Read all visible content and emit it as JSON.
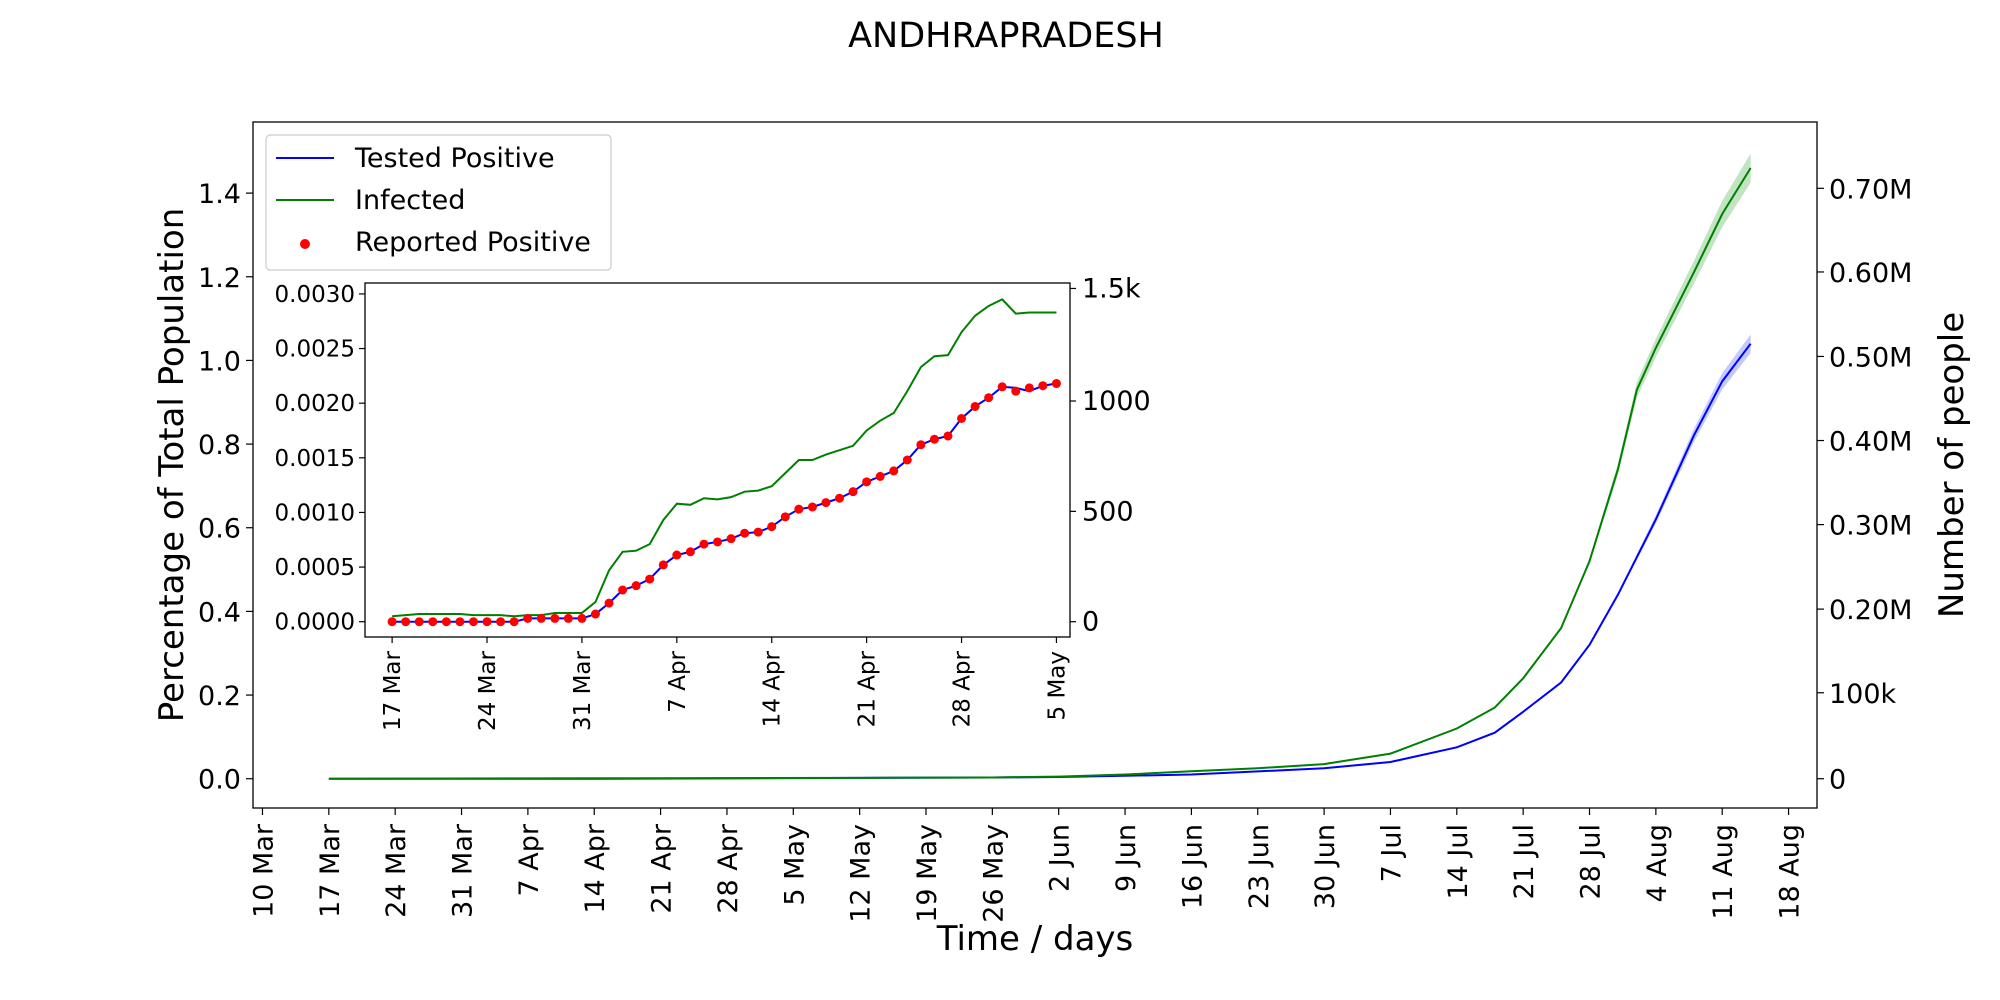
{
  "title": "ANDHRAPRADESH",
  "colors": {
    "tested": "#0000ff",
    "infected": "#008000",
    "reported": "#ff0000",
    "band_tested": "#aab4ff",
    "band_infected": "#a8d8a8"
  },
  "legend": {
    "placement": "top-left",
    "items": [
      {
        "key": "tested",
        "label": "Tested Positive",
        "kind": "line"
      },
      {
        "key": "infected",
        "label": "Infected",
        "kind": "line"
      },
      {
        "key": "reported",
        "label": "Reported Positive",
        "kind": "dot"
      }
    ]
  },
  "chart_data": [
    {
      "id": "main",
      "type": "line",
      "title": "ANDHRAPRADESH",
      "xlabel": "Time / days",
      "ylabel": "Percentage of Total Population",
      "y2label": "Number of people",
      "x_ticks": [
        "10 Mar",
        "17 Mar",
        "24 Mar",
        "31 Mar",
        "7 Apr",
        "14 Apr",
        "21 Apr",
        "28 Apr",
        "5 May",
        "12 May",
        "19 May",
        "26 May",
        "2 Jun",
        "9 Jun",
        "16 Jun",
        "23 Jun",
        "30 Jun",
        "7 Jul",
        "14 Jul",
        "21 Jul",
        "28 Jul",
        "4 Aug",
        "11 Aug",
        "18 Aug"
      ],
      "xlim": [
        "2020-03-09",
        "2020-08-21"
      ],
      "ylim": [
        -0.07,
        1.57
      ],
      "y_ticks": [
        "0.0",
        "0.2",
        "0.4",
        "0.6",
        "0.8",
        "1.0",
        "1.2",
        "1.4"
      ],
      "y2_ticks": [
        {
          "label": "0",
          "value": 0
        },
        {
          "label": "100k",
          "value": 0.2055
        },
        {
          "label": "0.20M",
          "value": 0.4055
        },
        {
          "label": "0.30M",
          "value": 0.6075
        },
        {
          "label": "0.40M",
          "value": 0.8085
        },
        {
          "label": "0.50M",
          "value": 1.0095
        },
        {
          "label": "0.60M",
          "value": 1.2115
        },
        {
          "label": "0.70M",
          "value": 1.4115
        }
      ],
      "grid": false,
      "series": [
        {
          "name": "Tested Positive",
          "key": "tested",
          "x": [
            "2020-03-17",
            "2020-04-14",
            "2020-05-12",
            "2020-05-26",
            "2020-06-02",
            "2020-06-16",
            "2020-06-30",
            "2020-07-07",
            "2020-07-14",
            "2020-07-18",
            "2020-07-21",
            "2020-07-25",
            "2020-07-28",
            "2020-07-31",
            "2020-08-04",
            "2020-08-08",
            "2020-08-11",
            "2020-08-14"
          ],
          "y": [
            0.0,
            0.0,
            0.002,
            0.003,
            0.004,
            0.01,
            0.025,
            0.04,
            0.075,
            0.11,
            0.16,
            0.23,
            0.32,
            0.44,
            0.62,
            0.82,
            0.95,
            1.04
          ]
        },
        {
          "name": "Infected",
          "key": "infected",
          "x": [
            "2020-03-17",
            "2020-04-14",
            "2020-05-12",
            "2020-05-26",
            "2020-06-02",
            "2020-06-09",
            "2020-06-16",
            "2020-06-23",
            "2020-06-30",
            "2020-07-07",
            "2020-07-14",
            "2020-07-18",
            "2020-07-21",
            "2020-07-25",
            "2020-07-28",
            "2020-07-31",
            "2020-08-02",
            "2020-08-04",
            "2020-08-08",
            "2020-08-11",
            "2020-08-14"
          ],
          "y": [
            0.0,
            0.001,
            0.002,
            0.003,
            0.005,
            0.01,
            0.018,
            0.025,
            0.035,
            0.06,
            0.12,
            0.17,
            0.24,
            0.36,
            0.52,
            0.74,
            0.93,
            1.03,
            1.21,
            1.35,
            1.46
          ]
        }
      ]
    },
    {
      "id": "inset",
      "type": "line",
      "x_ticks": [
        "17 Mar",
        "24 Mar",
        "31 Mar",
        "7 Apr",
        "14 Apr",
        "21 Apr",
        "28 Apr",
        "5 May"
      ],
      "xlim": [
        "2020-03-15",
        "2020-05-06"
      ],
      "ylim": [
        -0.00014,
        0.0031
      ],
      "y_ticks": [
        "0.0000",
        "0.0005",
        "0.0010",
        "0.0015",
        "0.0020",
        "0.0025",
        "0.0030"
      ],
      "y2_ticks": [
        {
          "label": "0",
          "value": 0.0
        },
        {
          "label": "500",
          "value": 0.00101
        },
        {
          "label": "1000",
          "value": 0.00202
        },
        {
          "label": "1.5k",
          "value": 0.00305
        }
      ],
      "series": [
        {
          "name": "Tested Positive",
          "key": "tested",
          "start": "2020-03-17",
          "y": [
            0.0,
            0.0,
            0.0,
            0.0,
            0.0,
            0.0,
            0.0,
            0.0,
            0.0,
            0.0,
            3e-05,
            3e-05,
            3e-05,
            3e-05,
            3e-05,
            7e-05,
            0.00017,
            0.00029,
            0.00033,
            0.00039,
            0.00052,
            0.00061,
            0.00064,
            0.00071,
            0.00073,
            0.00076,
            0.00081,
            0.00082,
            0.00087,
            0.00096,
            0.00103,
            0.00105,
            0.00109,
            0.00113,
            0.00119,
            0.00128,
            0.00133,
            0.00138,
            0.00148,
            0.00162,
            0.00167,
            0.0017,
            0.00186,
            0.00197,
            0.00205,
            0.00215,
            0.00214,
            0.00211,
            0.00216,
            0.00218
          ]
        },
        {
          "name": "Infected",
          "key": "infected",
          "start": "2020-03-17",
          "y": [
            5e-05,
            6e-05,
            7e-05,
            7e-05,
            7e-05,
            7e-05,
            6e-05,
            6e-05,
            6e-05,
            5e-05,
            6e-05,
            6e-05,
            8e-05,
            8e-05,
            8e-05,
            0.00018,
            0.00047,
            0.00064,
            0.00065,
            0.00071,
            0.00093,
            0.00108,
            0.00107,
            0.00113,
            0.00112,
            0.00114,
            0.00119,
            0.0012,
            0.00124,
            0.00136,
            0.00148,
            0.00148,
            0.00153,
            0.00157,
            0.00161,
            0.00175,
            0.00184,
            0.00191,
            0.00211,
            0.00233,
            0.00243,
            0.00244,
            0.00265,
            0.0028,
            0.00289,
            0.00295,
            0.00282,
            0.00283,
            0.00283,
            0.00283
          ]
        },
        {
          "name": "Reported Positive",
          "key": "reported",
          "start": "2020-03-17",
          "y": [
            0.0,
            0.0,
            0.0,
            0.0,
            0.0,
            0.0,
            0.0,
            0.0,
            0.0,
            0.0,
            3e-05,
            3e-05,
            3e-05,
            3e-05,
            3e-05,
            7e-05,
            0.00017,
            0.00029,
            0.00033,
            0.00039,
            0.00052,
            0.00061,
            0.00064,
            0.00071,
            0.00073,
            0.00076,
            0.00081,
            0.00082,
            0.00087,
            0.00096,
            0.00103,
            0.00105,
            0.00109,
            0.00113,
            0.00119,
            0.00128,
            0.00133,
            0.00138,
            0.00148,
            0.00162,
            0.00167,
            0.0017,
            0.00186,
            0.00197,
            0.00205,
            0.00215,
            0.00211,
            0.00214,
            0.00216,
            0.00218
          ]
        }
      ]
    }
  ]
}
